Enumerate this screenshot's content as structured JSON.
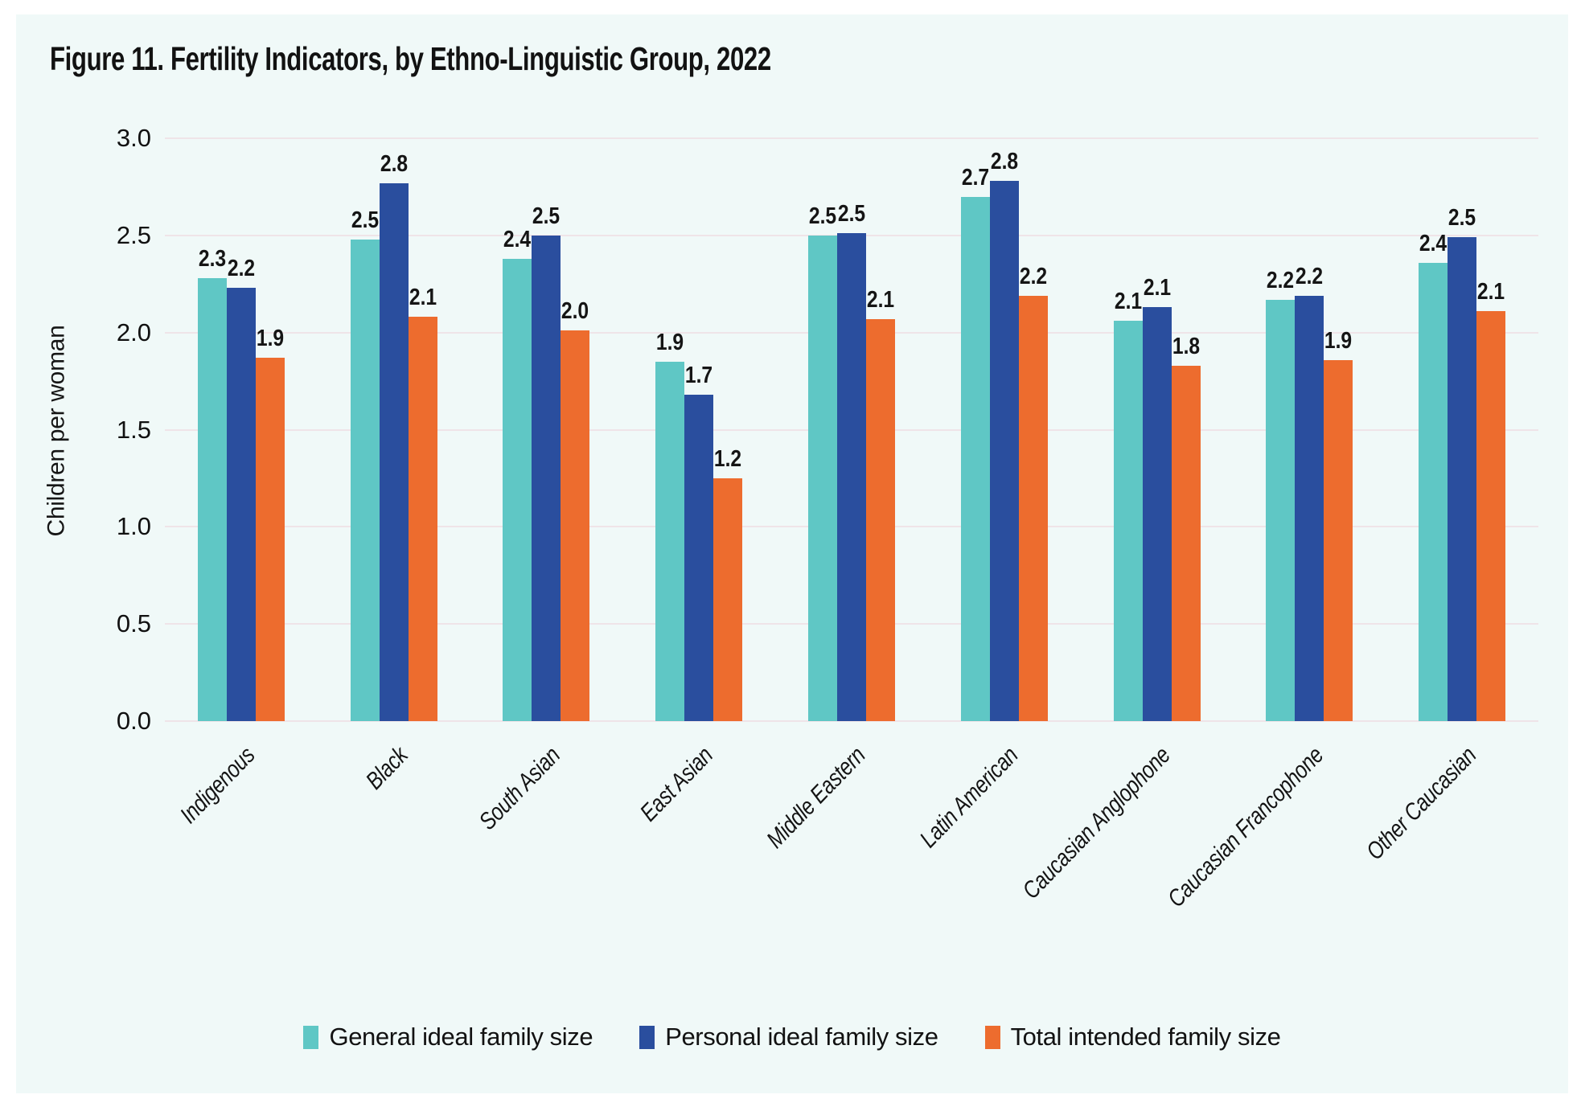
{
  "title": "Figure 11. Fertility Indicators, by Ethno-Linguistic Group, 2022",
  "colors": {
    "card_background": "#F0F9F8",
    "page_background": "#FFFFFF",
    "gridline": "#EFE4E8",
    "text": "#141414",
    "series_teal": "#5FC7C5",
    "series_blue": "#2A4E9E",
    "series_orange": "#ED6C2E"
  },
  "chart_data": {
    "type": "bar",
    "title": "Figure 11. Fertility Indicators, by Ethno-Linguistic Group, 2022",
    "xlabel": "",
    "ylabel": "Children per woman",
    "ylim": [
      0.0,
      3.0
    ],
    "ytick_step": 0.5,
    "yticks": [
      "3.0",
      "2.5",
      "2.0",
      "1.5",
      "1.0",
      "0.5",
      "0.0"
    ],
    "grid": true,
    "legend_position": "bottom",
    "data_labels": true,
    "categories": [
      "Indigenous",
      "Black",
      "South Asian",
      "East Asian",
      "Middle Eastern",
      "Latin American",
      "Caucasian Anglophone",
      "Caucasian Francophone",
      "Other Caucasian"
    ],
    "series": [
      {
        "name": "General ideal family size",
        "color": "#5FC7C5",
        "values": [
          2.3,
          2.5,
          2.4,
          1.9,
          2.5,
          2.7,
          2.1,
          2.2,
          2.4
        ],
        "bar_heights": [
          2.28,
          2.48,
          2.38,
          1.85,
          2.5,
          2.7,
          2.06,
          2.17,
          2.36
        ]
      },
      {
        "name": "Personal ideal family size",
        "color": "#2A4E9E",
        "values": [
          2.2,
          2.8,
          2.5,
          1.7,
          2.5,
          2.8,
          2.1,
          2.2,
          2.5
        ],
        "bar_heights": [
          2.23,
          2.77,
          2.5,
          1.68,
          2.51,
          2.78,
          2.13,
          2.19,
          2.49
        ]
      },
      {
        "name": "Total intended family size",
        "color": "#ED6C2E",
        "values": [
          1.9,
          2.1,
          2.0,
          1.2,
          2.1,
          2.2,
          1.8,
          1.9,
          2.1
        ],
        "bar_heights": [
          1.87,
          2.08,
          2.01,
          1.25,
          2.07,
          2.19,
          1.83,
          1.86,
          2.11
        ]
      }
    ]
  }
}
